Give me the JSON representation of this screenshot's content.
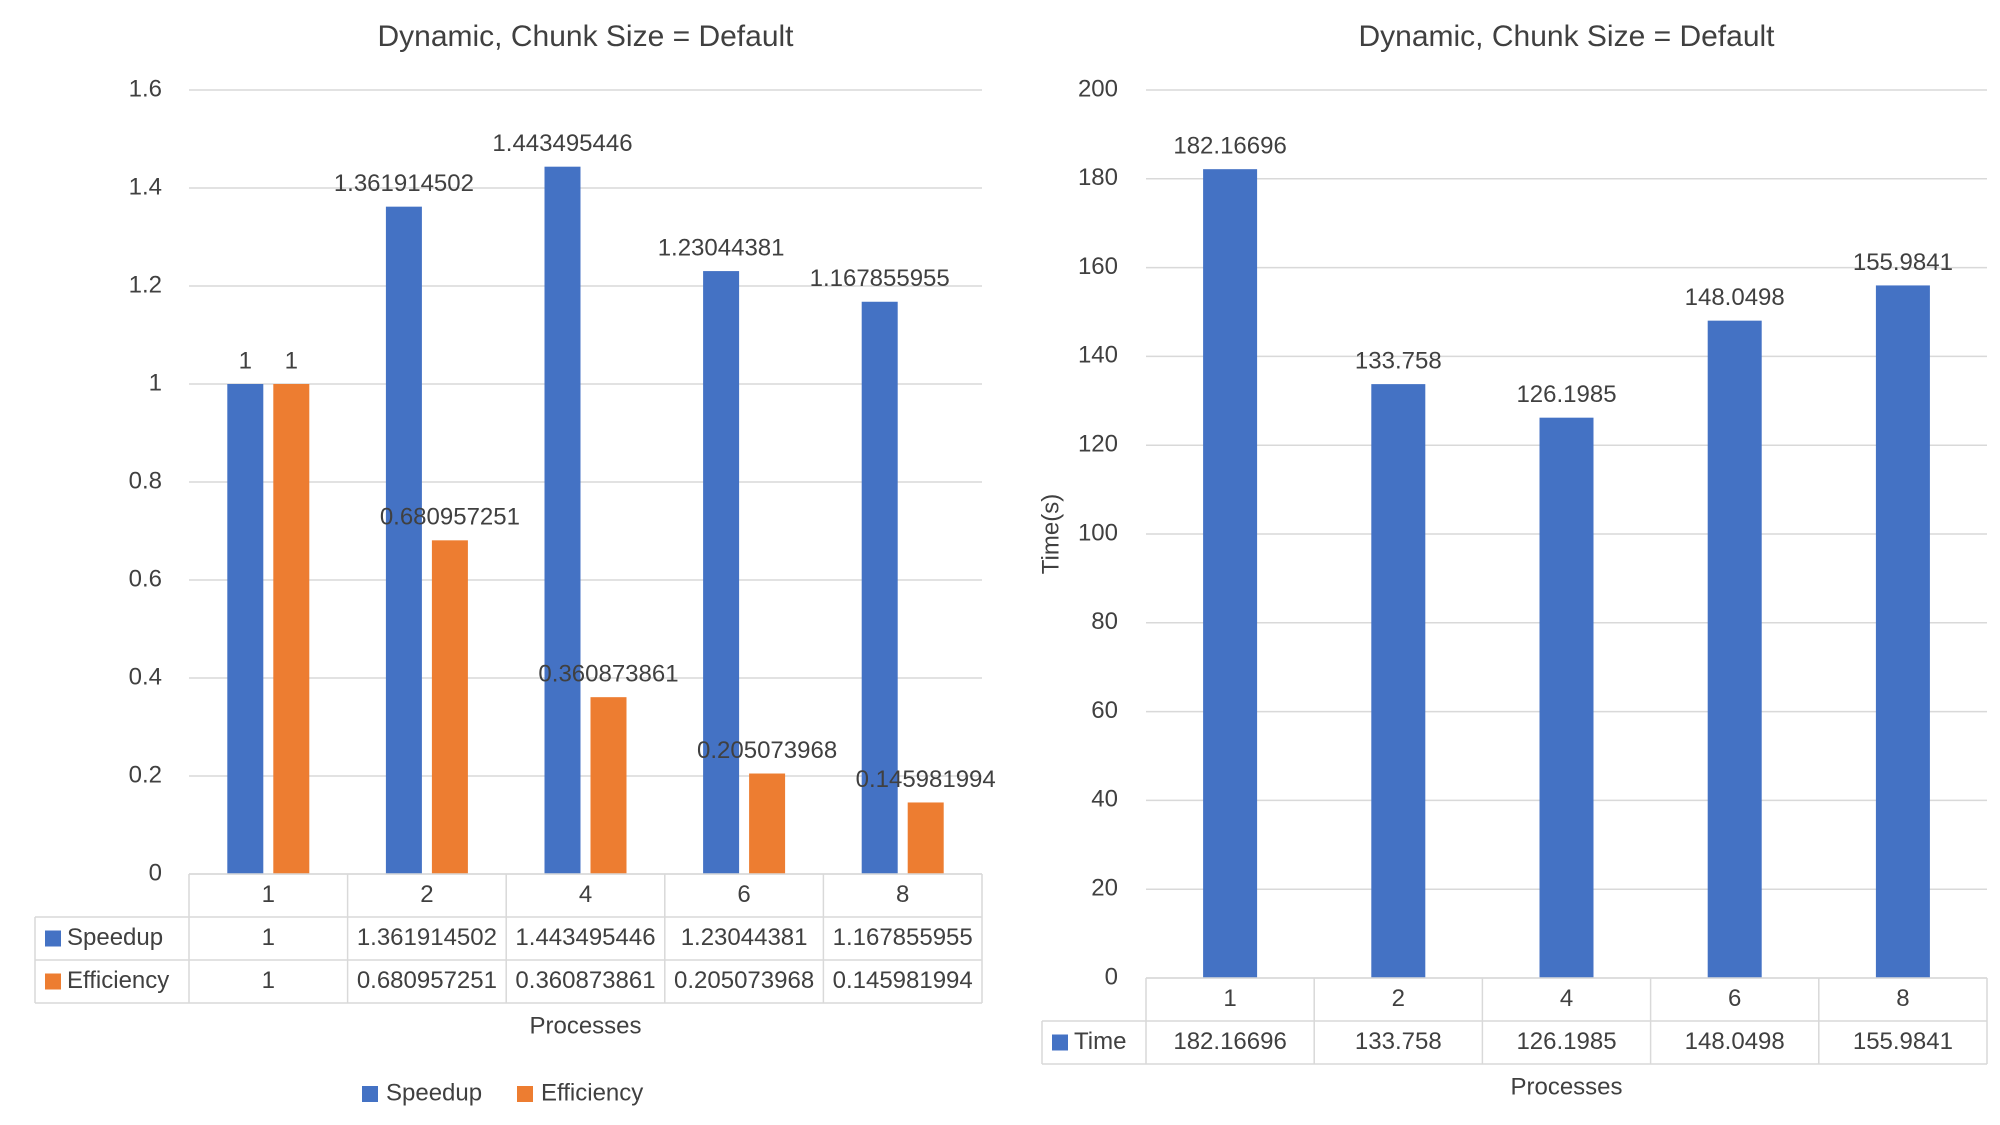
{
  "colors": {
    "speedup": "#4472C4",
    "efficiency": "#ED7D31",
    "time": "#4472C4",
    "grid": "#d9d9d9",
    "text": "#404040"
  },
  "chart_data": [
    {
      "type": "bar",
      "title": "Dynamic, Chunk Size = Default",
      "xlabel": "Processes",
      "ylabel": "",
      "categories": [
        "1",
        "2",
        "4",
        "6",
        "8"
      ],
      "ylim": [
        0,
        1.6
      ],
      "yticks": [
        "0",
        "0.2",
        "0.4",
        "0.6",
        "0.8",
        "1",
        "1.2",
        "1.4",
        "1.6"
      ],
      "series": [
        {
          "name": "Speedup",
          "values": [
            1,
            1.361914502,
            1.443495446,
            1.23044381,
            1.167855955
          ],
          "labels": [
            "1",
            "1.361914502",
            "1.443495446",
            "1.23044381",
            "1.167855955"
          ]
        },
        {
          "name": "Efficiency",
          "values": [
            1,
            0.680957251,
            0.360873861,
            0.205073968,
            0.145981994
          ],
          "labels": [
            "1",
            "0.680957251",
            "0.360873861",
            "0.205073968",
            "0.145981994"
          ]
        }
      ],
      "legend": "bottom",
      "data_table": true,
      "grid": true
    },
    {
      "type": "bar",
      "title": "Dynamic, Chunk Size = Default",
      "xlabel": "Processes",
      "ylabel": "Time(s)",
      "categories": [
        "1",
        "2",
        "4",
        "6",
        "8"
      ],
      "ylim": [
        0,
        200
      ],
      "yticks": [
        "0",
        "20",
        "40",
        "60",
        "80",
        "100",
        "120",
        "140",
        "160",
        "180",
        "200"
      ],
      "series": [
        {
          "name": "Time",
          "values": [
            182.16696,
            133.758,
            126.1985,
            148.0498,
            155.9841
          ],
          "labels": [
            "182.16696",
            "133.758",
            "126.1985",
            "148.0498",
            "155.9841"
          ]
        }
      ],
      "legend": "none",
      "data_table": true,
      "grid": true
    }
  ]
}
